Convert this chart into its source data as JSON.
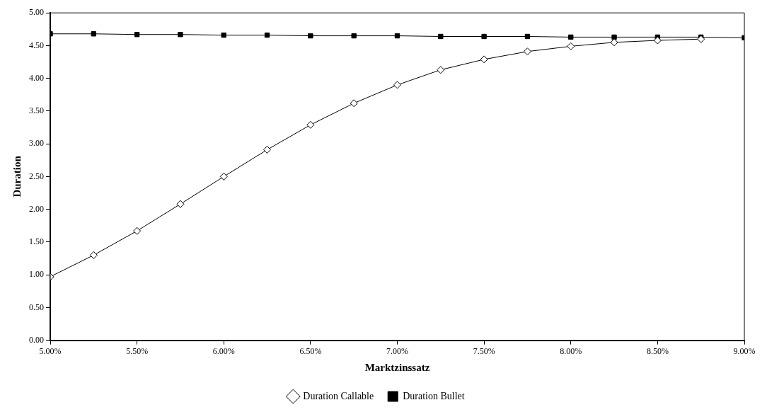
{
  "chart_data": {
    "type": "line",
    "xlabel": "Marktzinssatz",
    "ylabel": "Duration",
    "x": [
      5.0,
      5.25,
      5.5,
      5.75,
      6.0,
      6.25,
      6.5,
      6.75,
      7.0,
      7.25,
      7.5,
      7.75,
      8.0,
      8.25,
      8.5,
      8.75,
      9.0
    ],
    "series": [
      {
        "name": "Duration Bullet",
        "color": "#000000",
        "marker": "square",
        "values": [
          4.68,
          4.68,
          4.67,
          4.67,
          4.66,
          4.66,
          4.65,
          4.65,
          4.65,
          4.64,
          4.64,
          4.64,
          4.63,
          4.63,
          4.63,
          4.63,
          4.62
        ]
      },
      {
        "name": "Duration Callable",
        "color": "#000000",
        "marker": "diamond",
        "values": [
          0.97,
          1.3,
          1.67,
          2.08,
          2.5,
          2.91,
          3.29,
          3.62,
          3.9,
          4.13,
          4.29,
          4.41,
          4.49,
          4.55,
          4.58,
          4.6,
          null
        ]
      }
    ],
    "xlim": [
      5,
      9
    ],
    "xticks": [
      {
        "value": 5,
        "label": "5.00%"
      },
      {
        "value": 5.5,
        "label": "5.50%"
      },
      {
        "value": 6,
        "label": "6.00%"
      },
      {
        "value": 6.5,
        "label": "6.50%"
      },
      {
        "value": 7,
        "label": "7.00%"
      },
      {
        "value": 7.5,
        "label": "7.50%"
      },
      {
        "value": 8,
        "label": "8.00%"
      },
      {
        "value": 8.5,
        "label": "8.50%"
      },
      {
        "value": 9,
        "label": "9.00%"
      }
    ],
    "ylim": [
      0,
      5
    ],
    "yticks": [
      {
        "value": 0,
        "label": "0.00"
      },
      {
        "value": 0.5,
        "label": "0.50"
      },
      {
        "value": 1,
        "label": "1.00"
      },
      {
        "value": 1.5,
        "label": "1.50"
      },
      {
        "value": 2,
        "label": "2.00"
      },
      {
        "value": 2.5,
        "label": "2.50"
      },
      {
        "value": 3,
        "label": "3.00"
      },
      {
        "value": 3.5,
        "label": "3.50"
      },
      {
        "value": 4,
        "label": "4.00"
      },
      {
        "value": 4.5,
        "label": "4.50"
      },
      {
        "value": 5,
        "label": "5.00"
      }
    ],
    "grid": false,
    "legend": "bottom",
    "line_style": "solid"
  }
}
